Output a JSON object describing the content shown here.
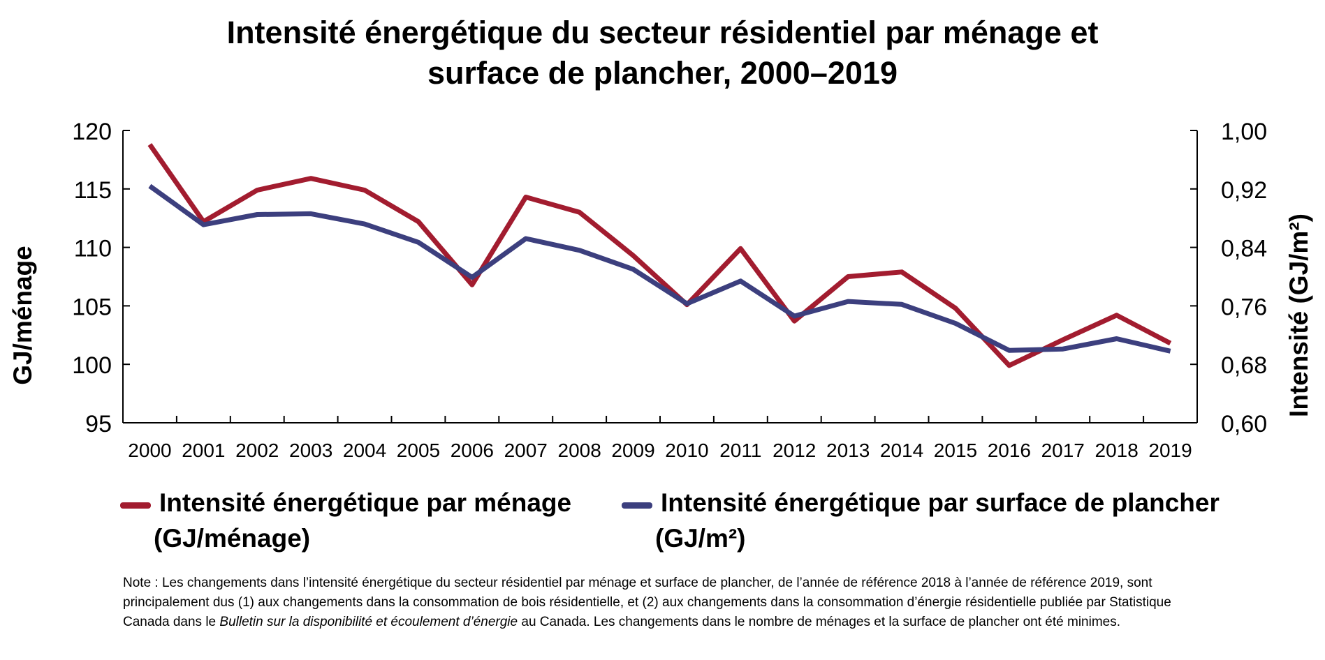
{
  "chart_data": {
    "type": "line",
    "title": "Intensité énergétique du secteur résidentiel par ménage et surface de plancher, 2000–2019",
    "categories": [
      "2000",
      "2001",
      "2002",
      "2003",
      "2004",
      "2005",
      "2006",
      "2007",
      "2008",
      "2009",
      "2010",
      "2011",
      "2012",
      "2013",
      "2014",
      "2015",
      "2016",
      "2017",
      "2018",
      "2019"
    ],
    "ylabel_left": "GJ/ménage",
    "ylabel_right": "Intensité (GJ/m²)",
    "ylim_left": [
      95,
      120
    ],
    "ylim_right": [
      0.6,
      1.0
    ],
    "yticks_left": [
      "95",
      "100",
      "105",
      "110",
      "115",
      "120"
    ],
    "yticks_right": [
      "0,60",
      "0,68",
      "0,76",
      "0,84",
      "0,92",
      "1,00"
    ],
    "series": [
      {
        "name": "Intensité énergétique par ménage (GJ/ménage)",
        "axis": "left",
        "color": "#A21C2F",
        "values": [
          118.8,
          112.2,
          114.9,
          115.9,
          114.9,
          112.2,
          106.8,
          114.3,
          113.0,
          109.3,
          105.1,
          109.9,
          103.7,
          107.5,
          107.9,
          104.8,
          99.9,
          102.1,
          104.2,
          101.8
        ]
      },
      {
        "name": "Intensité énergétique par surface de plancher (GJ/m²)",
        "axis": "right",
        "color": "#3C3F7E",
        "values": [
          0.924,
          0.871,
          0.885,
          0.886,
          0.872,
          0.847,
          0.799,
          0.852,
          0.836,
          0.81,
          0.763,
          0.794,
          0.746,
          0.766,
          0.762,
          0.736,
          0.699,
          0.701,
          0.715,
          0.698
        ]
      }
    ],
    "legend": [
      {
        "line1": "Intensité énergétique par ménage",
        "line2": "(GJ/ménage)"
      },
      {
        "line1": "Intensité énergétique par surface de plancher",
        "line2": "(GJ/m²)"
      }
    ]
  },
  "note": {
    "prefix": "Note : Les changements dans l’intensité énergétique du secteur résidentiel par ménage et surface de plancher, de l’année de référence 2018 à l’année de référence 2019, sont principalement dus (1) aux changements dans la consommation de bois résidentielle, et (2) aux changements dans la consommation d’énergie résidentielle publiée par Statistique Canada dans le ",
    "italic": "Bulletin sur la disponibilité et écoulement d’énergie",
    "suffix": " au Canada. Les changements dans le nombre de ménages et la surface de plancher ont été minimes."
  }
}
